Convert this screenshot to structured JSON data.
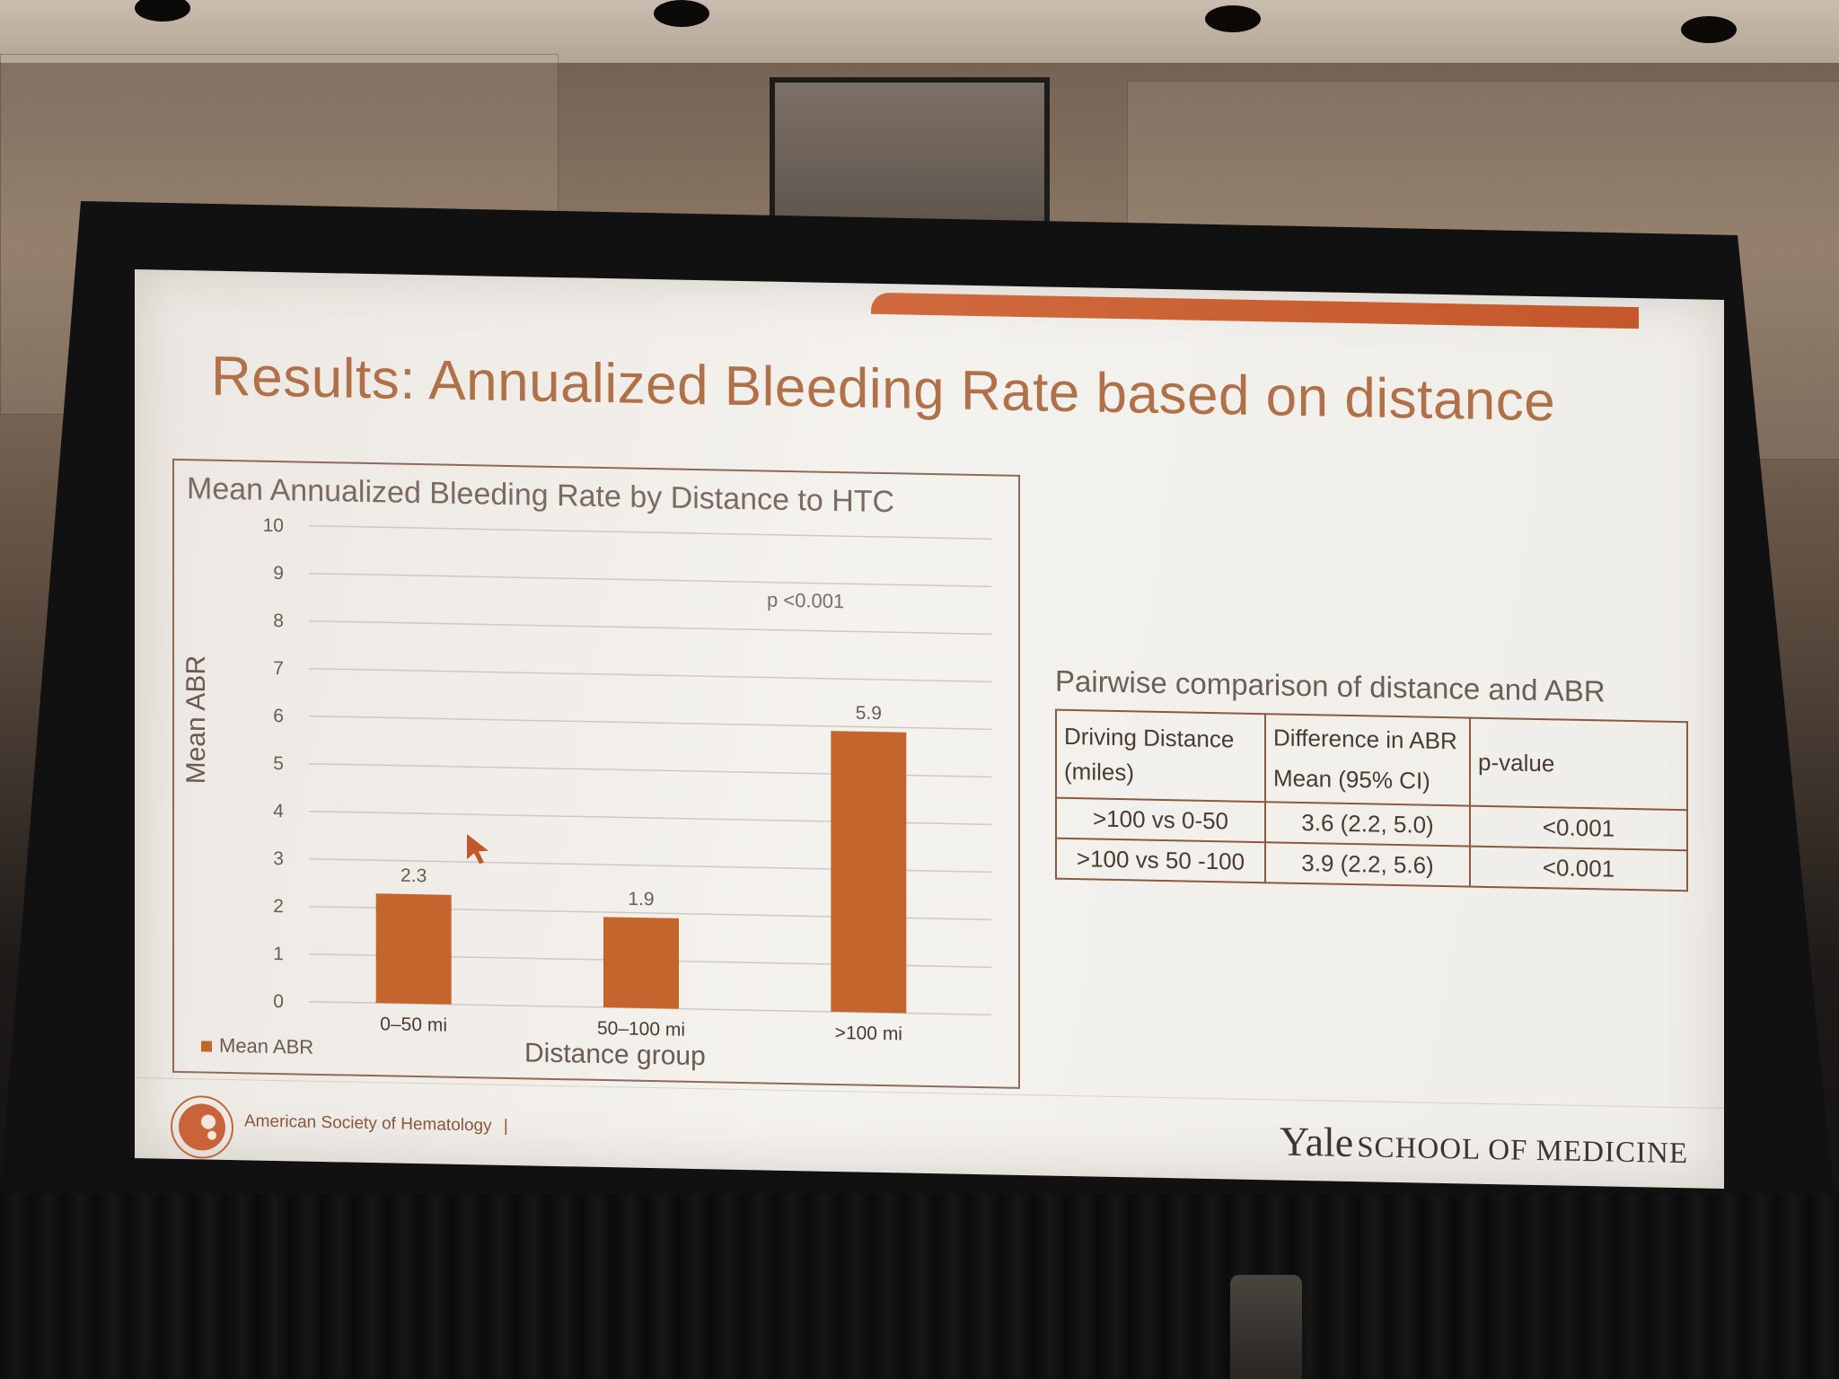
{
  "slide": {
    "title": "Results: Annualized Bleeding Rate based on distance"
  },
  "chart_data": {
    "type": "bar",
    "title": "Mean Annualized Bleeding Rate by Distance to HTC",
    "categories": [
      "0–50 mi",
      "50–100 mi",
      ">100 mi"
    ],
    "values": [
      2.3,
      1.9,
      5.9
    ],
    "data_labels": [
      "2.3",
      "1.9",
      "5.9"
    ],
    "xlabel": "Distance group",
    "ylabel": "Mean ABR",
    "ylim": [
      0,
      10
    ],
    "yticks": [
      0,
      1,
      2,
      3,
      4,
      5,
      6,
      7,
      8,
      9,
      10
    ],
    "grid": true,
    "legend": "bottom-left",
    "series": [
      {
        "name": "Mean ABR",
        "values": [
          2.3,
          1.9,
          5.9
        ]
      }
    ],
    "annotation": "p <0.001",
    "bar_color": "#c4652e"
  },
  "table": {
    "title": "Pairwise comparison of distance and ABR",
    "headers": {
      "col1": "Driving Distance (miles)",
      "col2": "Difference in ABR",
      "col2_sub": "Mean (95% CI)",
      "col3": "p-value"
    },
    "rows": [
      [
        ">100 vs 0-50",
        "3.6 (2.2, 5.0)",
        "<0.001"
      ],
      [
        ">100 vs 50 -100",
        "3.9 (2.2, 5.6)",
        "<0.001"
      ]
    ]
  },
  "footer": {
    "left": "American Society of Hematology",
    "separator": "|",
    "right_big": "Yale",
    "right_small": "SCHOOL OF MEDICINE"
  },
  "colors": {
    "accent": "#c4582b",
    "title": "#b07048",
    "bar": "#c4652e"
  }
}
